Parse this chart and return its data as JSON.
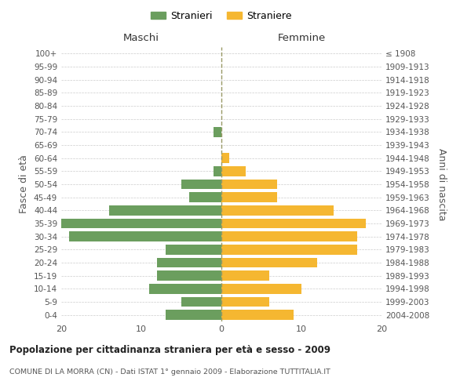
{
  "age_groups": [
    "0-4",
    "5-9",
    "10-14",
    "15-19",
    "20-24",
    "25-29",
    "30-34",
    "35-39",
    "40-44",
    "45-49",
    "50-54",
    "55-59",
    "60-64",
    "65-69",
    "70-74",
    "75-79",
    "80-84",
    "85-89",
    "90-94",
    "95-99",
    "100+"
  ],
  "birth_years": [
    "2004-2008",
    "1999-2003",
    "1994-1998",
    "1989-1993",
    "1984-1988",
    "1979-1983",
    "1974-1978",
    "1969-1973",
    "1964-1968",
    "1959-1963",
    "1954-1958",
    "1949-1953",
    "1944-1948",
    "1939-1943",
    "1934-1938",
    "1929-1933",
    "1924-1928",
    "1919-1923",
    "1914-1918",
    "1909-1913",
    "≤ 1908"
  ],
  "males": [
    7,
    5,
    9,
    8,
    8,
    7,
    19,
    20,
    14,
    4,
    5,
    1,
    0,
    0,
    1,
    0,
    0,
    0,
    0,
    0,
    0
  ],
  "females": [
    9,
    6,
    10,
    6,
    12,
    17,
    17,
    18,
    14,
    7,
    7,
    3,
    1,
    0,
    0,
    0,
    0,
    0,
    0,
    0,
    0
  ],
  "male_color": "#6b9e5e",
  "female_color": "#f5b731",
  "background_color": "#ffffff",
  "grid_color": "#cccccc",
  "title": "Popolazione per cittadinanza straniera per età e sesso - 2009",
  "subtitle": "COMUNE DI LA MORRA (CN) - Dati ISTAT 1° gennaio 2009 - Elaborazione TUTTITALIA.IT",
  "left_label": "Maschi",
  "right_label": "Femmine",
  "left_axis_label": "Fasce di età",
  "right_axis_label": "Anni di nascita",
  "legend_male": "Stranieri",
  "legend_female": "Straniere",
  "xlim": 20
}
